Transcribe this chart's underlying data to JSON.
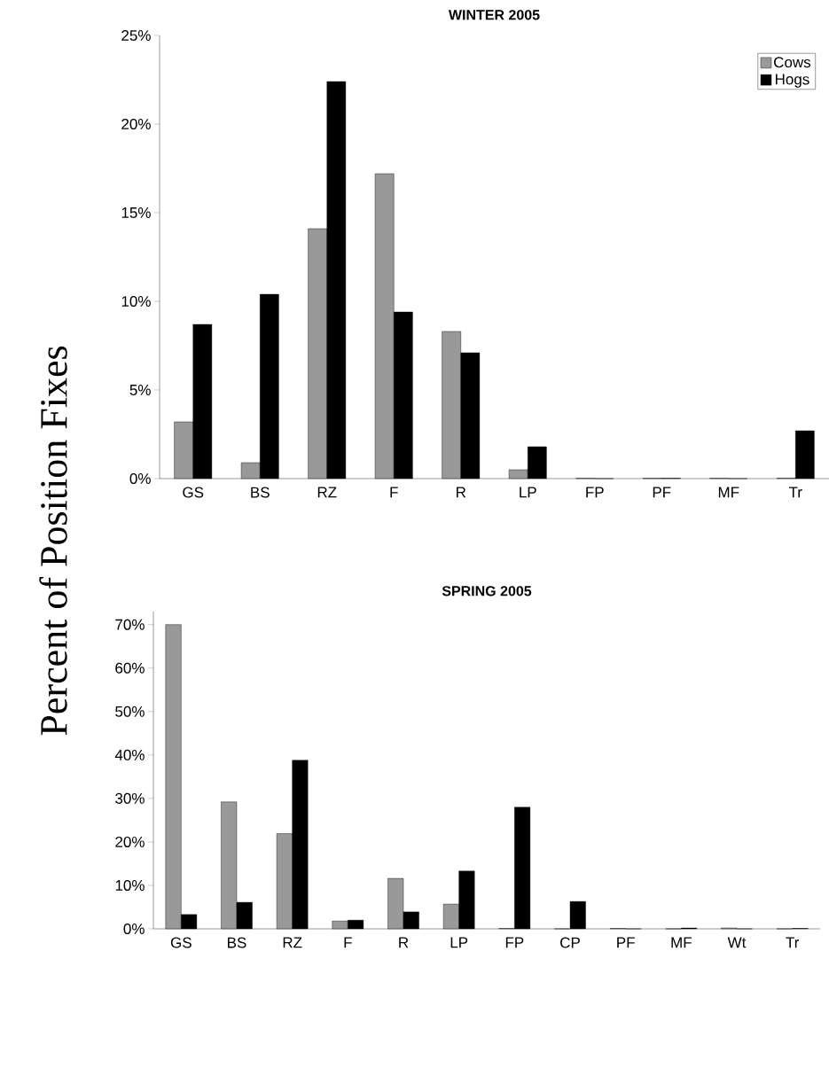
{
  "chart_data": [
    {
      "type": "bar",
      "title": "WINTER 2005",
      "ylabel": "Percent of Position Fixes",
      "categories": [
        "GS",
        "BS",
        "RZ",
        "F",
        "R",
        "LP",
        "FP",
        "PF",
        "MF",
        "Tr"
      ],
      "series": [
        {
          "name": "Cows",
          "color": "#999999",
          "values": [
            3.2,
            0.9,
            14.1,
            17.2,
            8.3,
            0.5,
            0.02,
            0.02,
            0.02,
            0.03
          ]
        },
        {
          "name": "Hogs",
          "color": "#000000",
          "values": [
            8.7,
            10.4,
            22.4,
            9.4,
            7.1,
            1.8,
            0,
            0.02,
            0,
            2.7
          ]
        }
      ],
      "ylim": [
        0,
        25
      ],
      "yticks": [
        {
          "value": 0,
          "label": "0%"
        },
        {
          "value": 5,
          "label": "5%"
        },
        {
          "value": 10,
          "label": "10%"
        },
        {
          "value": 15,
          "label": "15%"
        },
        {
          "value": 20,
          "label": "20%"
        },
        {
          "value": 25,
          "label": "25%"
        }
      ],
      "legend": "top right"
    },
    {
      "type": "bar",
      "title": "SPRING 2005",
      "categories": [
        "GS",
        "BS",
        "RZ",
        "F",
        "R",
        "LP",
        "FP",
        "CP",
        "PF",
        "MF",
        "Wt",
        "Tr"
      ],
      "series": [
        {
          "color": "#999999",
          "values": [
            70,
            29.2,
            21.9,
            1.8,
            11.6,
            5.7,
            0.1,
            0,
            0.1,
            0,
            0.2,
            0
          ]
        },
        {
          "color": "#000000",
          "values": [
            3.3,
            6.1,
            38.8,
            2.0,
            3.9,
            13.3,
            28.0,
            6.3,
            0,
            0.2,
            0,
            0.1
          ]
        }
      ],
      "ylim": [
        0,
        73
      ],
      "yticks": [
        {
          "value": 0,
          "label": "0%"
        },
        {
          "value": 10,
          "label": "10%"
        },
        {
          "value": 20,
          "label": "20%"
        },
        {
          "value": 30,
          "label": "30%"
        },
        {
          "value": 40,
          "label": "40%"
        },
        {
          "value": 50,
          "label": "50%"
        },
        {
          "value": 60,
          "label": "60%"
        },
        {
          "value": 70,
          "label": "70%"
        }
      ],
      "legend": false
    }
  ]
}
